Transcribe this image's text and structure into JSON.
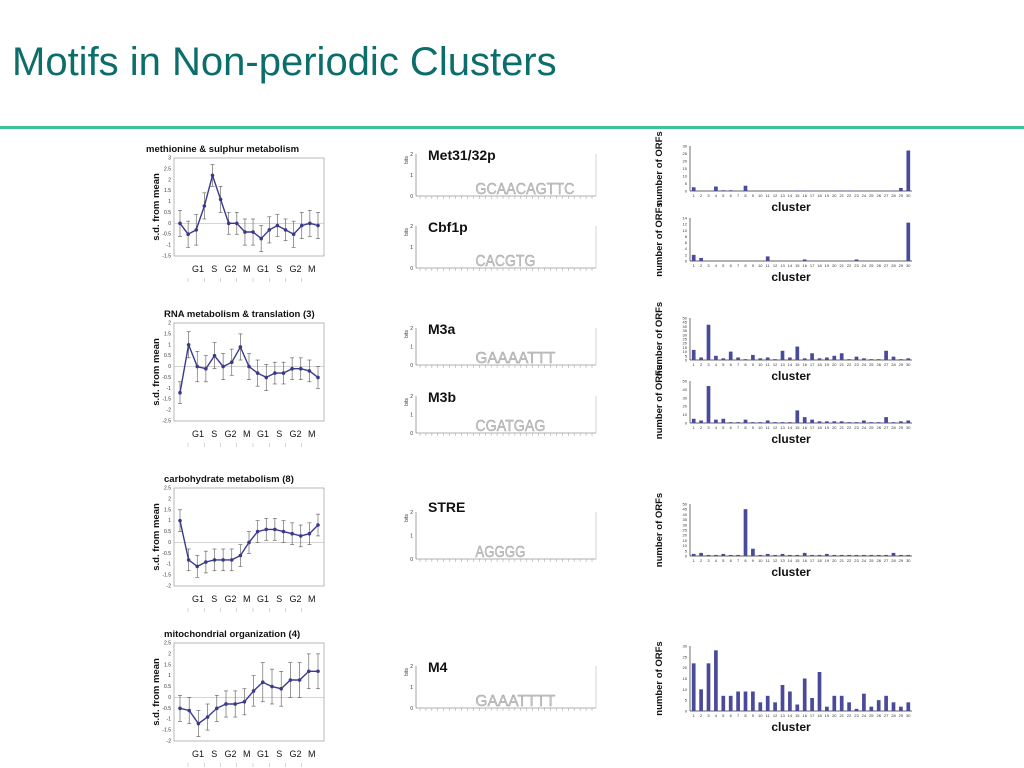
{
  "slide": {
    "title": "Motifs in Non-periodic Clusters"
  },
  "colors": {
    "title": "#0b6e6b",
    "rule": "#3cc39a",
    "line": "#3a3a8c",
    "bar": "#4a4a9a"
  },
  "chart_data": [
    {
      "type": "line",
      "title": "methionine & sulphur metabolism",
      "ylabel": "s.d. from mean",
      "phase_labels": [
        "G1",
        "S",
        "G2",
        "M",
        "G1",
        "S",
        "G2",
        "M"
      ],
      "yticks": [
        "3",
        "2.5",
        "2",
        "1.5",
        "1",
        "0.5",
        "0",
        "-0.5",
        "-1",
        "-1.5"
      ],
      "ylim": [
        -1.5,
        3
      ],
      "values": [
        0.0,
        -0.5,
        -0.3,
        0.8,
        2.2,
        1.1,
        0.0,
        0.0,
        -0.4,
        -0.4,
        -0.7,
        -0.3,
        -0.1,
        -0.3,
        -0.5,
        -0.1,
        0.0,
        -0.1
      ],
      "errors": [
        0.6,
        0.6,
        0.7,
        0.6,
        0.5,
        0.6,
        0.5,
        0.5,
        0.6,
        0.6,
        0.6,
        0.6,
        0.5,
        0.5,
        0.6,
        0.6,
        0.6,
        0.6
      ]
    },
    {
      "type": "line",
      "title": "RNA metabolism & translation  (3)",
      "ylabel": "s.d. from mean",
      "phase_labels": [
        "G1",
        "S",
        "G2",
        "M",
        "G1",
        "S",
        "G2",
        "M"
      ],
      "yticks": [
        "2",
        "1.5",
        "1",
        "0.5",
        "0",
        "-0.5",
        "-1",
        "-1.5",
        "-2",
        "-2.5"
      ],
      "ylim": [
        -2.5,
        2
      ],
      "values": [
        -1.2,
        1.0,
        0.0,
        -0.1,
        0.5,
        0.0,
        0.2,
        0.9,
        0.0,
        -0.3,
        -0.5,
        -0.3,
        -0.3,
        -0.1,
        -0.1,
        -0.2,
        -0.5
      ],
      "errors": [
        0.5,
        0.6,
        0.7,
        0.6,
        0.6,
        0.6,
        0.6,
        0.6,
        0.6,
        0.6,
        0.6,
        0.5,
        0.5,
        0.5,
        0.5,
        0.5,
        0.5
      ]
    },
    {
      "type": "line",
      "title": "carbohydrate metabolism (8)",
      "ylabel": "s.d. from mean",
      "phase_labels": [
        "G1",
        "S",
        "G2",
        "M",
        "G1",
        "S",
        "G2",
        "M"
      ],
      "yticks": [
        "2.5",
        "2",
        "1.5",
        "1",
        "0.5",
        "0",
        "-0.5",
        "-1",
        "-1.5",
        "-2"
      ],
      "ylim": [
        -2,
        2.5
      ],
      "values": [
        1.0,
        -0.8,
        -1.1,
        -0.9,
        -0.8,
        -0.8,
        -0.8,
        -0.6,
        0.0,
        0.5,
        0.6,
        0.6,
        0.5,
        0.4,
        0.3,
        0.4,
        0.8
      ],
      "errors": [
        0.5,
        0.5,
        0.5,
        0.5,
        0.5,
        0.5,
        0.5,
        0.5,
        0.5,
        0.5,
        0.5,
        0.5,
        0.5,
        0.5,
        0.5,
        0.5,
        0.5
      ]
    },
    {
      "type": "line",
      "title": "mitochondrial organization (4)",
      "ylabel": "s.d. from mean",
      "phase_labels": [
        "G1",
        "S",
        "G2",
        "M",
        "G1",
        "S",
        "G2",
        "M"
      ],
      "yticks": [
        "2.5",
        "2",
        "1.5",
        "1",
        "0.5",
        "0",
        "-0.5",
        "-1",
        "-1.5",
        "-2"
      ],
      "ylim": [
        -2,
        2.5
      ],
      "values": [
        -0.5,
        -0.6,
        -1.2,
        -0.9,
        -0.5,
        -0.3,
        -0.3,
        -0.2,
        0.3,
        0.7,
        0.5,
        0.4,
        0.8,
        0.8,
        1.2,
        1.2
      ],
      "errors": [
        0.6,
        0.6,
        0.6,
        0.6,
        0.6,
        0.6,
        0.6,
        0.6,
        0.7,
        0.9,
        0.8,
        0.8,
        0.8,
        0.8,
        0.8,
        0.8
      ]
    }
  ],
  "motifs": [
    {
      "name": "Met31/32p",
      "bits_label": "bits",
      "yticks": [
        "2",
        "1",
        "0"
      ],
      "logo_text": "GCAACAGTTC"
    },
    {
      "name": "Cbf1p",
      "bits_label": "bits",
      "yticks": [
        "2",
        "1",
        "0"
      ],
      "logo_text": "CACGTG"
    },
    {
      "name": "M3a",
      "bits_label": "bits",
      "yticks": [
        "2",
        "1",
        "0"
      ],
      "logo_text": "GAAAATTT"
    },
    {
      "name": "M3b",
      "bits_label": "bits",
      "yticks": [
        "2",
        "1",
        "0"
      ],
      "logo_text": "CGATGAG"
    },
    {
      "name": "STRE",
      "bits_label": "bits",
      "yticks": [
        "2",
        "1",
        "0"
      ],
      "logo_text": "AGGGG"
    },
    {
      "name": "M4",
      "bits_label": "bits",
      "yticks": [
        "2",
        "1",
        "0"
      ],
      "logo_text": "GAAATTTT"
    }
  ],
  "cluster_charts": [
    {
      "type": "bar",
      "ylabel": "number of ORFs",
      "xlabel": "cluster",
      "ymax": 30,
      "yticks": [
        "30",
        "25",
        "20",
        "15",
        "10",
        "5",
        "0"
      ],
      "values": [
        2.5,
        0,
        0,
        3,
        0.5,
        0.5,
        0,
        3.5,
        0,
        0,
        0,
        0,
        0,
        0,
        0.3,
        0.3,
        0,
        0,
        0,
        0,
        0.3,
        0.3,
        0,
        0,
        0,
        0,
        0,
        0.3,
        2,
        27
      ]
    },
    {
      "type": "bar",
      "ylabel": "number of ORFs",
      "xlabel": "cluster",
      "ymax": 14,
      "yticks": [
        "14",
        "12",
        "10",
        "8",
        "6",
        "4",
        "2",
        "0"
      ],
      "values": [
        2,
        1,
        0,
        0,
        0,
        0,
        0,
        0,
        0,
        0,
        1.5,
        0,
        0,
        0,
        0,
        0.5,
        0,
        0,
        0,
        0,
        0,
        0,
        0.5,
        0,
        0,
        0,
        0,
        0,
        0,
        12.5
      ]
    },
    {
      "type": "bar",
      "ylabel": "number of ORFs",
      "xlabel": "cluster",
      "ymax": 50,
      "yticks": [
        "50",
        "45",
        "40",
        "35",
        "30",
        "25",
        "20",
        "15",
        "10",
        "5",
        "0"
      ],
      "values": [
        12,
        3,
        42,
        5,
        2,
        10,
        3,
        1,
        6,
        2,
        3,
        1,
        11,
        3,
        16,
        2,
        8,
        2,
        3,
        5,
        8,
        1,
        4,
        2,
        1,
        1,
        11,
        4,
        1,
        2
      ]
    },
    {
      "type": "bar",
      "ylabel": "number of ORFs",
      "xlabel": "cluster",
      "ymax": 50,
      "yticks": [
        "50",
        "40",
        "30",
        "20",
        "10",
        "0"
      ],
      "values": [
        5,
        3,
        44,
        4,
        5,
        1,
        1,
        4,
        1,
        1,
        3,
        1,
        1,
        1,
        15,
        7,
        4,
        2,
        2,
        2,
        2,
        1,
        1,
        3,
        1,
        1,
        7,
        1,
        2,
        3
      ]
    },
    {
      "type": "bar",
      "ylabel": "number of ORFs",
      "xlabel": "cluster",
      "ymax": 50,
      "yticks": [
        "50",
        "45",
        "40",
        "35",
        "30",
        "25",
        "20",
        "15",
        "10",
        "5",
        "0"
      ],
      "values": [
        2,
        3,
        1,
        1,
        2,
        1,
        1,
        45,
        7,
        1,
        2,
        1,
        2,
        1,
        1,
        3,
        1,
        1,
        2,
        1,
        1,
        1,
        1,
        1,
        1,
        1,
        1,
        3,
        1,
        1
      ]
    },
    {
      "type": "bar",
      "ylabel": "number of ORFs",
      "xlabel": "cluster",
      "ymax": 30,
      "yticks": [
        "30",
        "25",
        "20",
        "15",
        "10",
        "5",
        "0"
      ],
      "values": [
        22,
        10,
        22,
        28,
        7,
        7,
        9,
        9,
        9,
        4,
        7,
        4,
        12,
        9,
        3,
        15,
        6,
        18,
        2,
        7,
        7,
        4,
        1,
        8,
        2,
        5,
        7,
        4,
        2,
        4
      ]
    }
  ]
}
